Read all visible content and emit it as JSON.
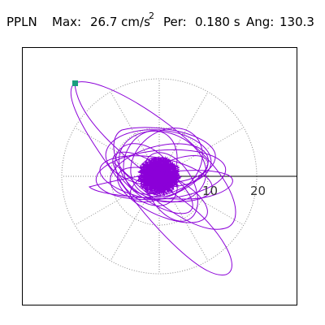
{
  "header": {
    "station": "PPLN",
    "max_label": "Max:",
    "max_value": "26.7 cm/s",
    "max_exponent": "2",
    "period_label": "Per:",
    "period_value": "0.180 s",
    "angle_label": "Ang:",
    "angle_value": "130.3"
  },
  "plot": {
    "axis_tick_10": "10",
    "axis_tick_20": "20",
    "trace_color": "#8b00d8",
    "marker_color": "#1a9e7e",
    "grid_color": "#8a8a8a"
  }
}
